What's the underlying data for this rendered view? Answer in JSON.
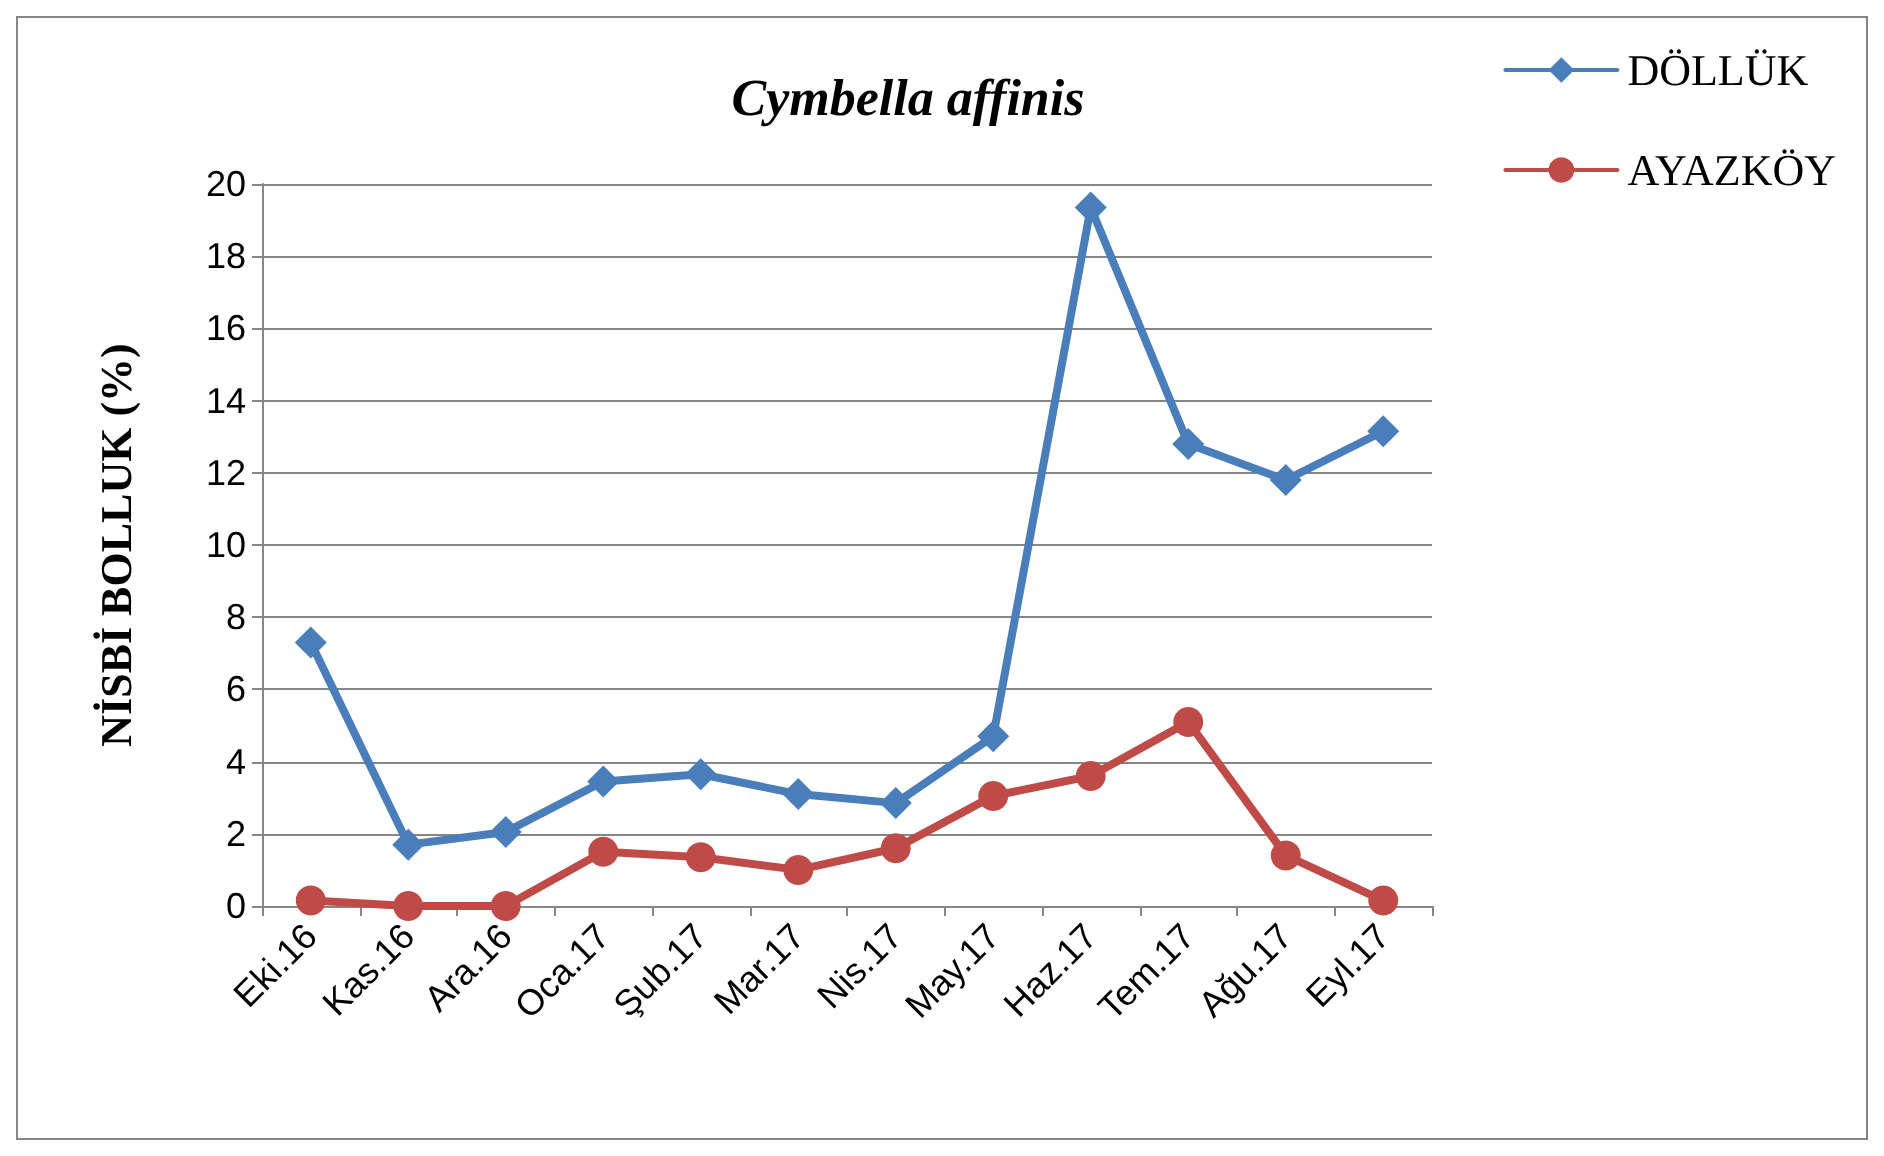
{
  "chart_data": {
    "type": "line",
    "title": "Cymbella affinis",
    "ylabel": "NİSBİ BOLLUK (%)",
    "categories": [
      "Eki.16",
      "Kas.16",
      "Ara.16",
      "Oca.17",
      "Şub.17",
      "Mar.17",
      "Nis.17",
      "May.17",
      "Haz.17",
      "Tem.17",
      "Ağu.17",
      "Eyl.17"
    ],
    "series": [
      {
        "name": "DÖLLÜK",
        "color": "#4a7ebb",
        "marker": "diamond",
        "values": [
          7.3,
          1.7,
          2.05,
          3.45,
          3.65,
          3.1,
          2.85,
          4.7,
          19.35,
          12.8,
          11.8,
          13.15
        ]
      },
      {
        "name": "AYAZKÖY",
        "color": "#be4b48",
        "marker": "circle",
        "values": [
          0.15,
          0,
          0,
          1.5,
          1.35,
          1,
          1.6,
          3.05,
          3.6,
          5.1,
          1.4,
          0.15
        ]
      }
    ],
    "ylim": [
      0,
      20
    ],
    "yticks": [
      0,
      2,
      4,
      6,
      8,
      10,
      12,
      14,
      16,
      18,
      20
    ],
    "grid": "y",
    "legend": "top right",
    "line_style": "solid"
  }
}
